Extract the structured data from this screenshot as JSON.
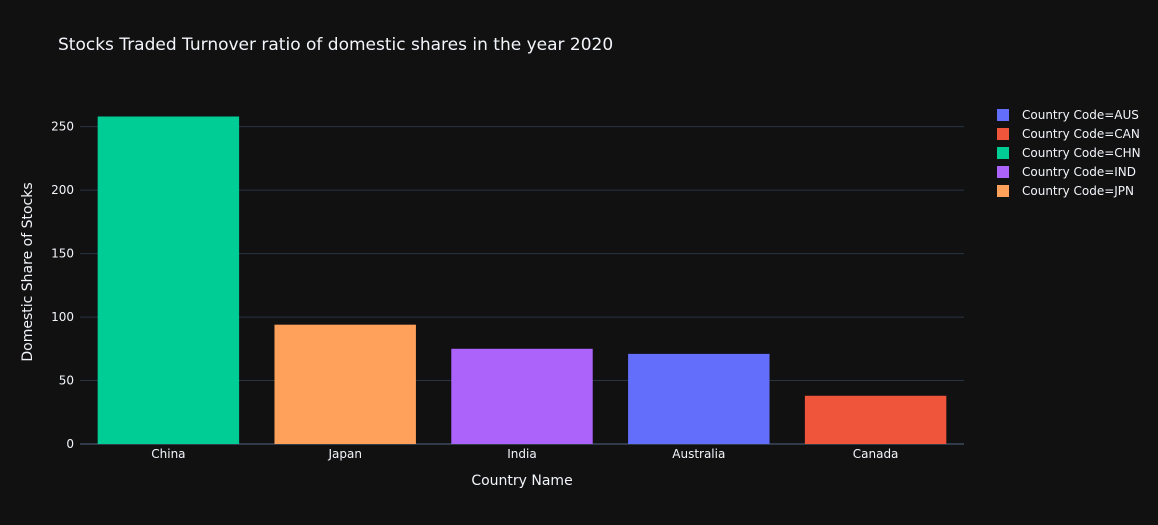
{
  "chart_data": {
    "type": "bar",
    "title": "Stocks Traded Turnover ratio of domestic shares in the year 2020",
    "xlabel": "Country Name",
    "ylabel": "Domestic Share of Stocks",
    "categories": [
      "China",
      "Japan",
      "India",
      "Australia",
      "Canada"
    ],
    "ylim": [
      0,
      271
    ],
    "yticks": [
      0,
      50,
      100,
      150,
      200,
      250
    ],
    "grid": true,
    "legend_position": "top-right",
    "background": "#111111",
    "series": [
      {
        "name": "Country Code=AUS",
        "color": "#636efa",
        "category": "Australia",
        "value": 71
      },
      {
        "name": "Country Code=CAN",
        "color": "#ef553b",
        "category": "Canada",
        "value": 38
      },
      {
        "name": "Country Code=CHN",
        "color": "#00cc96",
        "category": "China",
        "value": 258
      },
      {
        "name": "Country Code=IND",
        "color": "#ab63fa",
        "category": "India",
        "value": 75
      },
      {
        "name": "Country Code=JPN",
        "color": "#ffa15a",
        "category": "Japan",
        "value": 94
      }
    ]
  }
}
